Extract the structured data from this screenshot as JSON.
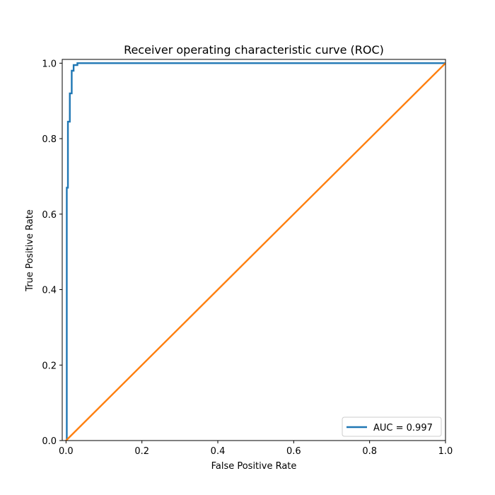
{
  "chart_data": {
    "type": "line",
    "title": "Receiver operating characteristic curve (ROC)",
    "xlabel": "False Positive Rate",
    "ylabel": "True Positive Rate",
    "xlim": [
      -0.01,
      1.0
    ],
    "ylim": [
      0.0,
      1.01
    ],
    "xticks": [
      0.0,
      0.2,
      0.4,
      0.6,
      0.8,
      1.0
    ],
    "xtick_labels": [
      "0.0",
      "0.2",
      "0.4",
      "0.6",
      "0.8",
      "1.0"
    ],
    "yticks": [
      0.0,
      0.2,
      0.4,
      0.6,
      0.8,
      1.0
    ],
    "ytick_labels": [
      "0.0",
      "0.2",
      "0.4",
      "0.6",
      "0.8",
      "1.0"
    ],
    "grid": false,
    "legend_position": "lower-right",
    "series": [
      {
        "name": "AUC = 0.997",
        "color": "#1f77b4",
        "x": [
          0.0,
          0.0,
          0.002,
          0.002,
          0.005,
          0.005,
          0.01,
          0.01,
          0.015,
          0.015,
          0.02,
          0.02,
          0.025,
          0.025,
          0.03,
          0.03,
          1.0
        ],
        "y": [
          0.0,
          0.0,
          0.0,
          0.67,
          0.67,
          0.845,
          0.845,
          0.92,
          0.92,
          0.98,
          0.98,
          0.995,
          0.995,
          0.995,
          0.995,
          1.0,
          1.0
        ]
      },
      {
        "name": "",
        "color": "#ff7f0e",
        "x": [
          0.0,
          1.0
        ],
        "y": [
          0.0,
          1.0
        ]
      }
    ]
  }
}
